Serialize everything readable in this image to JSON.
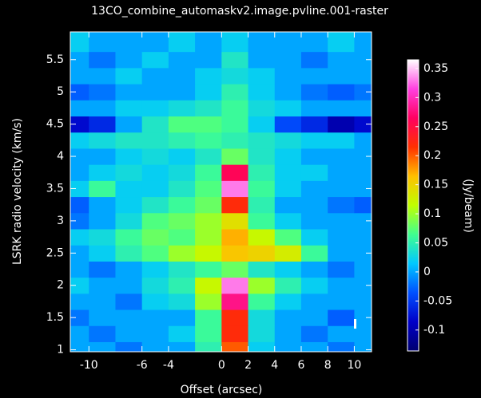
{
  "chart_data": {
    "type": "heatmap",
    "title": "13CO_combine_automaskv2.image.pvline.001-raster",
    "x_label": "Offset (arcsec)",
    "y_label": "LSRK radio velocity (km/s)",
    "colorbar_label": "(Jy/beam)",
    "x": [
      -11,
      -9,
      -7,
      -5,
      -3,
      -1,
      1,
      3,
      5,
      7,
      9,
      11
    ],
    "y": [
      1.0,
      1.25,
      1.5,
      1.75,
      2.0,
      2.25,
      2.5,
      2.75,
      3.0,
      3.25,
      3.5,
      3.75,
      4.0,
      4.25,
      4.5,
      4.75,
      5.0,
      5.25,
      5.5,
      5.75
    ],
    "z": [
      [
        0.0,
        0.0,
        -0.02,
        0.0,
        0.0,
        0.05,
        0.2,
        0.02,
        0.0,
        0.0,
        -0.02,
        0.0
      ],
      [
        0.0,
        -0.02,
        0.0,
        0.0,
        0.02,
        0.06,
        0.22,
        0.03,
        0.0,
        -0.02,
        0.0,
        0.0
      ],
      [
        -0.02,
        0.0,
        0.0,
        0.0,
        0.0,
        0.06,
        0.22,
        0.03,
        0.0,
        0.0,
        -0.03,
        0.0
      ],
      [
        0.0,
        0.0,
        -0.02,
        0.02,
        0.03,
        0.1,
        0.28,
        0.06,
        0.02,
        0.0,
        0.0,
        0.0
      ],
      [
        0.02,
        0.0,
        0.0,
        0.03,
        0.05,
        0.12,
        0.33,
        0.1,
        0.05,
        0.02,
        0.0,
        0.0
      ],
      [
        0.0,
        -0.02,
        0.0,
        0.02,
        0.04,
        0.06,
        0.08,
        0.04,
        0.02,
        0.0,
        -0.02,
        0.0
      ],
      [
        0.0,
        0.02,
        0.05,
        0.07,
        0.1,
        0.12,
        0.16,
        0.15,
        0.13,
        0.06,
        0.0,
        0.0
      ],
      [
        0.02,
        0.03,
        0.06,
        0.08,
        0.07,
        0.1,
        0.17,
        0.12,
        0.07,
        0.02,
        0.0,
        0.0
      ],
      [
        -0.02,
        0.0,
        0.03,
        0.07,
        0.08,
        0.1,
        0.14,
        0.06,
        0.02,
        0.0,
        0.0,
        0.0
      ],
      [
        -0.03,
        0.0,
        0.02,
        0.04,
        0.06,
        0.08,
        0.22,
        0.05,
        0.0,
        0.0,
        -0.02,
        -0.03
      ],
      [
        0.02,
        0.06,
        0.02,
        0.02,
        0.04,
        0.07,
        0.33,
        0.06,
        0.02,
        0.0,
        0.0,
        0.0
      ],
      [
        0.0,
        0.02,
        0.03,
        0.02,
        0.03,
        0.06,
        0.26,
        0.05,
        0.02,
        0.02,
        0.0,
        0.0
      ],
      [
        0.0,
        0.0,
        0.02,
        0.03,
        0.02,
        0.04,
        0.08,
        0.04,
        0.02,
        0.0,
        0.0,
        0.0
      ],
      [
        0.02,
        0.03,
        0.04,
        0.04,
        0.05,
        0.06,
        0.05,
        0.04,
        0.03,
        0.02,
        0.02,
        0.0
      ],
      [
        -0.08,
        -0.06,
        0.0,
        0.04,
        0.07,
        0.07,
        0.06,
        0.02,
        -0.04,
        -0.06,
        -0.1,
        -0.08
      ],
      [
        0.0,
        0.0,
        0.02,
        0.02,
        0.03,
        0.04,
        0.06,
        0.03,
        0.02,
        0.0,
        0.0,
        0.0
      ],
      [
        -0.03,
        -0.02,
        0.0,
        0.0,
        0.0,
        0.02,
        0.05,
        0.02,
        0.0,
        -0.02,
        -0.03,
        -0.02
      ],
      [
        0.0,
        0.0,
        0.02,
        0.0,
        0.0,
        0.02,
        0.03,
        0.02,
        0.0,
        0.0,
        0.0,
        0.0
      ],
      [
        0.0,
        -0.02,
        0.0,
        0.02,
        0.0,
        0.0,
        0.04,
        0.0,
        0.0,
        -0.02,
        0.0,
        0.0
      ],
      [
        0.02,
        0.0,
        0.0,
        0.0,
        0.02,
        0.0,
        0.02,
        0.0,
        0.0,
        0.0,
        0.02,
        0.0
      ]
    ],
    "xlim": [
      -11.4,
      11.3
    ],
    "ylim": [
      0.97,
      5.93
    ],
    "xticks": [
      -10,
      -6,
      -4,
      0,
      2,
      4,
      6,
      8,
      10
    ],
    "yticks": [
      1,
      1.5,
      2,
      2.5,
      3,
      3.5,
      4,
      4.5,
      5,
      5.5
    ],
    "clim": [
      -0.136,
      0.365
    ],
    "cticks": [
      -0.1,
      -0.05,
      0,
      0.05,
      0.1,
      0.15,
      0.2,
      0.25,
      0.3,
      0.35
    ],
    "colormap": [
      "#000070",
      "#0000c8",
      "#0050ff",
      "#00c8ff",
      "#40ff90",
      "#c0ff00",
      "#ffc000",
      "#ff3000",
      "#ff0060",
      "#ff40e0",
      "#ffffff"
    ]
  }
}
